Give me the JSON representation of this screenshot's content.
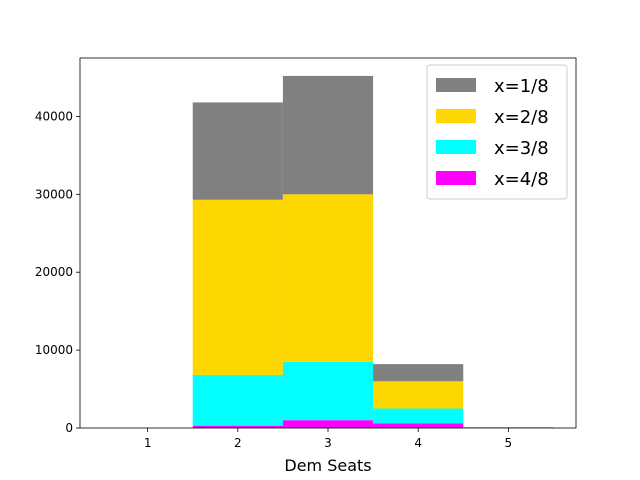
{
  "chart_data": {
    "type": "bar",
    "stacked": true,
    "categories": [
      "1",
      "2",
      "3",
      "4",
      "5"
    ],
    "x": [
      1,
      2,
      3,
      4,
      5
    ],
    "xlabel": "Dem Seats",
    "ylabel": "",
    "title": "",
    "ylim": [
      0,
      47500
    ],
    "yticks": [
      0,
      10000,
      20000,
      30000,
      40000
    ],
    "grid": false,
    "legend_position": "top-right",
    "series": [
      {
        "name": "x=4/8",
        "color": "#ff00ff",
        "values": [
          0,
          300,
          1000,
          600,
          50
        ]
      },
      {
        "name": "x=3/8",
        "color": "#00ffff",
        "values": [
          0,
          6500,
          7500,
          1900,
          50
        ]
      },
      {
        "name": "x=2/8",
        "color": "#ffd700",
        "values": [
          0,
          22500,
          21500,
          3500,
          0
        ]
      },
      {
        "name": "x=1/8",
        "color": "#808080",
        "values": [
          0,
          12500,
          15200,
          2200,
          0
        ]
      }
    ],
    "legend_order": [
      "x=1/8",
      "x=2/8",
      "x=3/8",
      "x=4/8"
    ]
  }
}
